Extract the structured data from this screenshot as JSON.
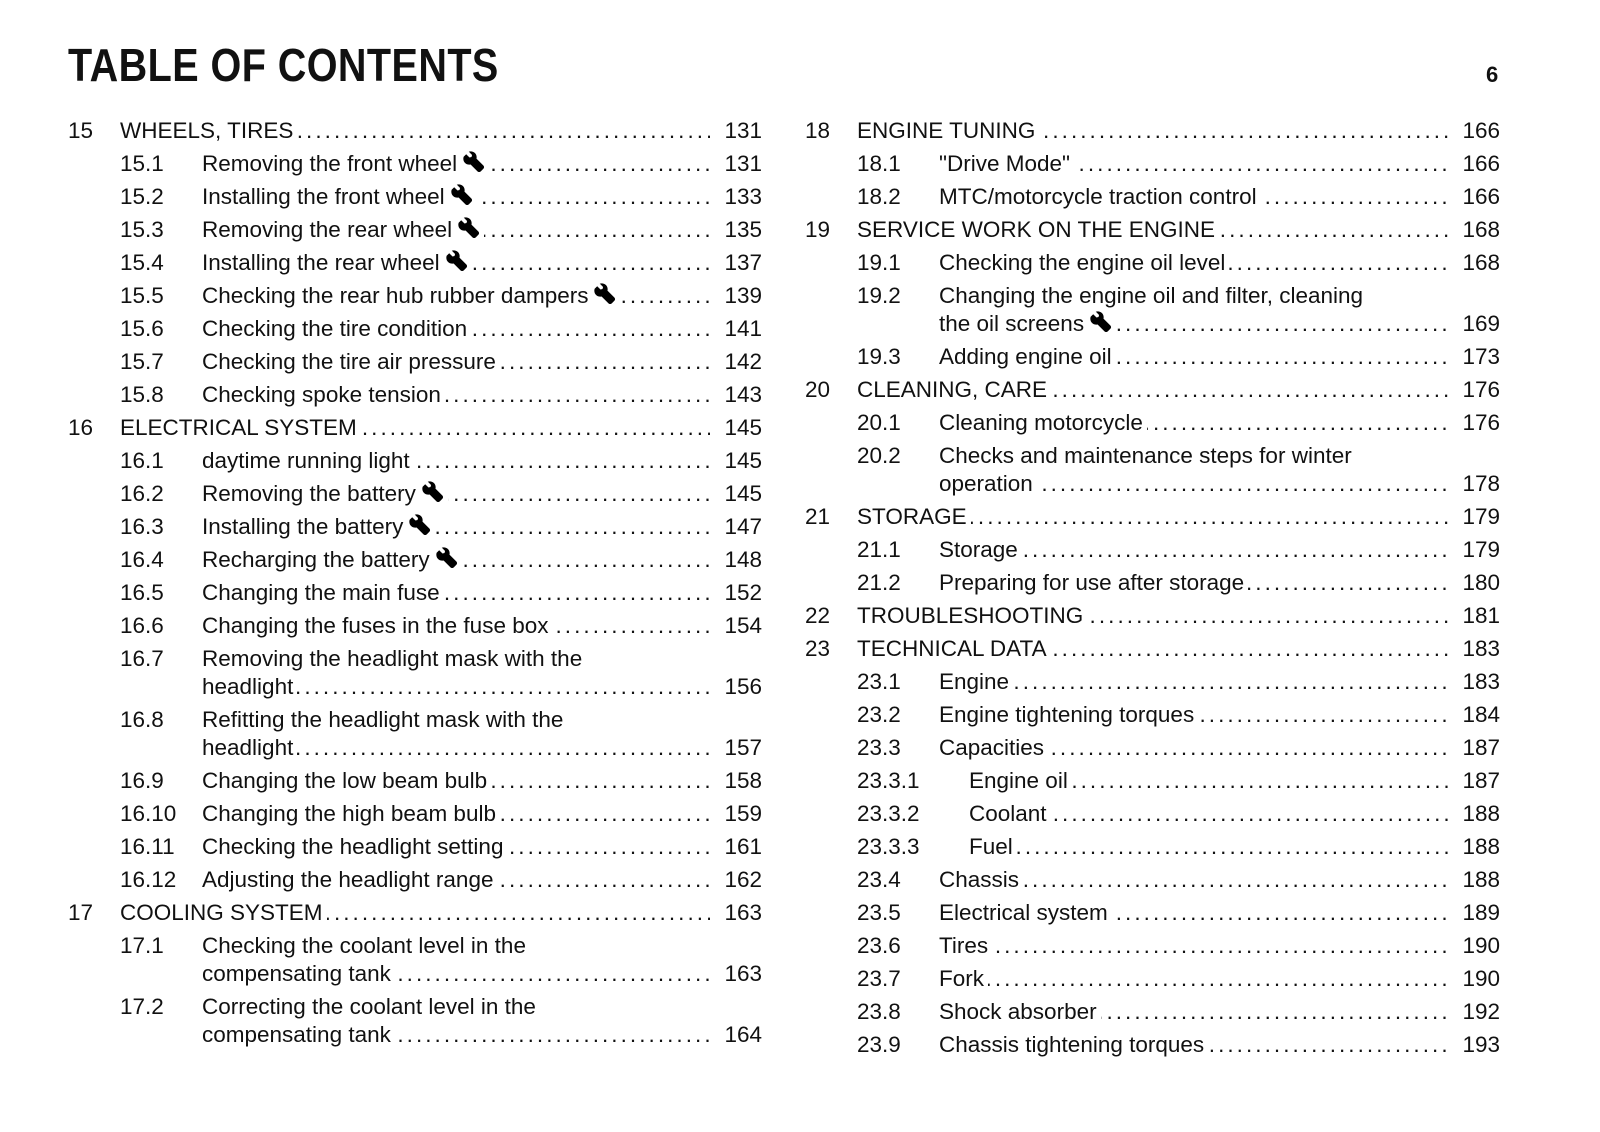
{
  "header": {
    "title": "TABLE OF CONTENTS",
    "page_number": "6"
  },
  "columns": [
    [
      {
        "num": "15",
        "title": "WHEELS, TIRES",
        "page": "131",
        "level": 0
      },
      {
        "num": "15.1",
        "title": "Removing the front wheel",
        "page": "131",
        "level": 1,
        "wrench": true
      },
      {
        "num": "15.2",
        "title": "Installing the front wheel",
        "page": "133",
        "level": 1,
        "wrench": true
      },
      {
        "num": "15.3",
        "title": "Removing the rear wheel",
        "page": "135",
        "level": 1,
        "wrench": true
      },
      {
        "num": "15.4",
        "title": "Installing the rear wheel",
        "page": "137",
        "level": 1,
        "wrench": true
      },
      {
        "num": "15.5",
        "title": "Checking the rear hub rubber dampers",
        "page": "139",
        "level": 1,
        "wrench": true
      },
      {
        "num": "15.6",
        "title": "Checking the tire condition",
        "page": "141",
        "level": 1
      },
      {
        "num": "15.7",
        "title": "Checking the tire air pressure",
        "page": "142",
        "level": 1
      },
      {
        "num": "15.8",
        "title": "Checking spoke tension",
        "page": "143",
        "level": 1
      },
      {
        "num": "16",
        "title": "ELECTRICAL SYSTEM",
        "page": "145",
        "level": 0
      },
      {
        "num": "16.1",
        "title": "daytime running light",
        "page": "145",
        "level": 1
      },
      {
        "num": "16.2",
        "title": "Removing the battery",
        "page": "145",
        "level": 1,
        "wrench": true
      },
      {
        "num": "16.3",
        "title": "Installing the battery",
        "page": "147",
        "level": 1,
        "wrench": true
      },
      {
        "num": "16.4",
        "title": "Recharging the battery",
        "page": "148",
        "level": 1,
        "wrench": true
      },
      {
        "num": "16.5",
        "title": "Changing the main fuse",
        "page": "152",
        "level": 1
      },
      {
        "num": "16.6",
        "title": "Changing the fuses in the fuse box",
        "page": "154",
        "level": 1
      },
      {
        "num": "16.7",
        "title": "Removing the headlight mask with the headlight",
        "page": "156",
        "level": 1,
        "wrap": true
      },
      {
        "num": "16.8",
        "title": "Refitting the headlight mask with the headlight",
        "page": "157",
        "level": 1,
        "wrap": true
      },
      {
        "num": "16.9",
        "title": "Changing the low beam bulb",
        "page": "158",
        "level": 1
      },
      {
        "num": "16.10",
        "title": "Changing the high beam bulb",
        "page": "159",
        "level": 1
      },
      {
        "num": "16.11",
        "title": "Checking the headlight setting",
        "page": "161",
        "level": 1
      },
      {
        "num": "16.12",
        "title": "Adjusting the headlight range",
        "page": "162",
        "level": 1
      },
      {
        "num": "17",
        "title": "COOLING SYSTEM",
        "page": "163",
        "level": 0
      },
      {
        "num": "17.1",
        "title": "Checking the coolant level in the compensating tank",
        "page": "163",
        "level": 1,
        "wrap": true
      },
      {
        "num": "17.2",
        "title": "Correcting the coolant level in the compensating tank",
        "page": "164",
        "level": 1,
        "wrap": true
      }
    ],
    [
      {
        "num": "18",
        "title": "ENGINE TUNING",
        "page": "166",
        "level": 0
      },
      {
        "num": "18.1",
        "title": "\"Drive Mode\"",
        "page": "166",
        "level": 1
      },
      {
        "num": "18.2",
        "title": "MTC/motorcycle traction control",
        "page": "166",
        "level": 1
      },
      {
        "num": "19",
        "title": "SERVICE WORK ON THE ENGINE",
        "page": "168",
        "level": 0
      },
      {
        "num": "19.1",
        "title": "Checking the engine oil level",
        "page": "168",
        "level": 1
      },
      {
        "num": "19.2",
        "title": "Changing the engine oil and filter, cleaning the oil screens",
        "page": "169",
        "level": 1,
        "wrench": true,
        "wrap": true
      },
      {
        "num": "19.3",
        "title": "Adding engine oil",
        "page": "173",
        "level": 1
      },
      {
        "num": "20",
        "title": "CLEANING, CARE",
        "page": "176",
        "level": 0
      },
      {
        "num": "20.1",
        "title": "Cleaning motorcycle",
        "page": "176",
        "level": 1
      },
      {
        "num": "20.2",
        "title": "Checks and maintenance steps for winter operation",
        "page": "178",
        "level": 1,
        "wrap": true
      },
      {
        "num": "21",
        "title": "STORAGE",
        "page": "179",
        "level": 0
      },
      {
        "num": "21.1",
        "title": "Storage",
        "page": "179",
        "level": 1
      },
      {
        "num": "21.2",
        "title": "Preparing for use after storage",
        "page": "180",
        "level": 1
      },
      {
        "num": "22",
        "title": "TROUBLESHOOTING",
        "page": "181",
        "level": 0
      },
      {
        "num": "23",
        "title": "TECHNICAL DATA",
        "page": "183",
        "level": 0
      },
      {
        "num": "23.1",
        "title": "Engine",
        "page": "183",
        "level": 1
      },
      {
        "num": "23.2",
        "title": "Engine tightening torques",
        "page": "184",
        "level": 1
      },
      {
        "num": "23.3",
        "title": "Capacities",
        "page": "187",
        "level": 1
      },
      {
        "num": "23.3.1",
        "title": "Engine oil",
        "page": "187",
        "level": 2
      },
      {
        "num": "23.3.2",
        "title": "Coolant",
        "page": "188",
        "level": 2
      },
      {
        "num": "23.3.3",
        "title": "Fuel",
        "page": "188",
        "level": 2
      },
      {
        "num": "23.4",
        "title": "Chassis",
        "page": "188",
        "level": 1
      },
      {
        "num": "23.5",
        "title": "Electrical system",
        "page": "189",
        "level": 1
      },
      {
        "num": "23.6",
        "title": "Tires",
        "page": "190",
        "level": 1
      },
      {
        "num": "23.7",
        "title": "Fork",
        "page": "190",
        "level": 1
      },
      {
        "num": "23.8",
        "title": "Shock absorber",
        "page": "192",
        "level": 1
      },
      {
        "num": "23.9",
        "title": "Chassis tightening torques",
        "page": "193",
        "level": 1
      }
    ]
  ]
}
